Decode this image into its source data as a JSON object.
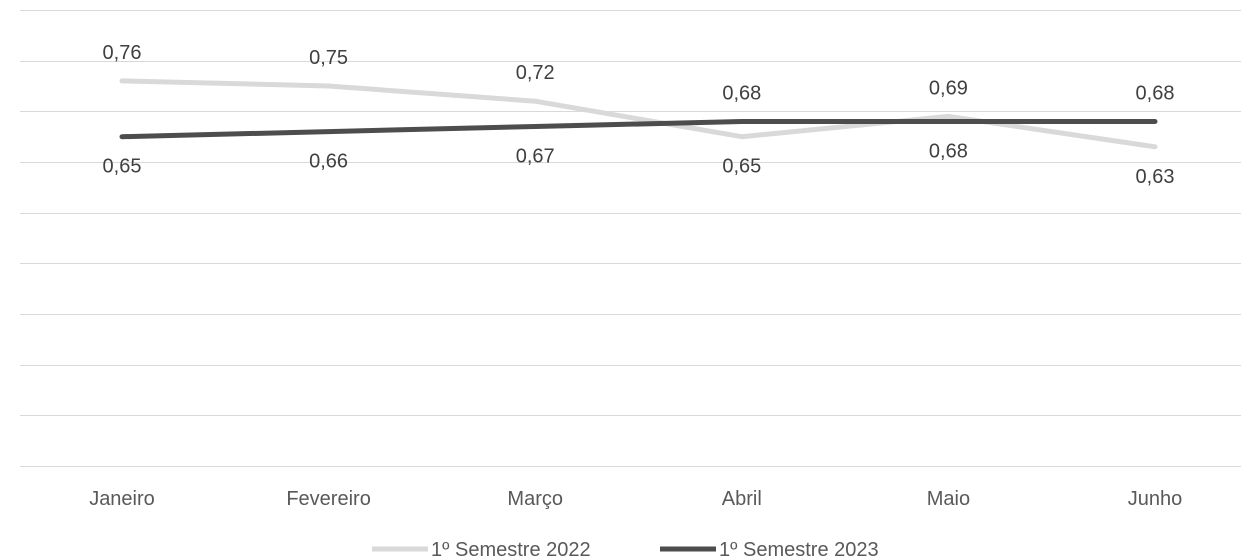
{
  "chart_data": {
    "type": "line",
    "categories": [
      "Janeiro",
      "Fevereiro",
      "Março",
      "Abril",
      "Maio",
      "Junho"
    ],
    "series": [
      {
        "name": "1º Semestre 2022",
        "values": [
          0.76,
          0.75,
          0.72,
          0.65,
          0.69,
          0.63
        ],
        "labels": [
          "0,76",
          "0,75",
          "0,72",
          "0,65",
          "0,69",
          "0,63"
        ],
        "color": "#d9d9d9"
      },
      {
        "name": "1º Semestre 2023",
        "values": [
          0.65,
          0.66,
          0.67,
          0.68,
          0.68,
          0.68
        ],
        "labels": [
          "0,65",
          "0,66",
          "0,67",
          "0,68",
          "0,68",
          "0,68"
        ],
        "color": "#4d4d4d"
      }
    ],
    "ylim": [
      0,
      0.9
    ],
    "grid": true,
    "legend": "bottom",
    "title": "",
    "xlabel": "",
    "ylabel": ""
  }
}
